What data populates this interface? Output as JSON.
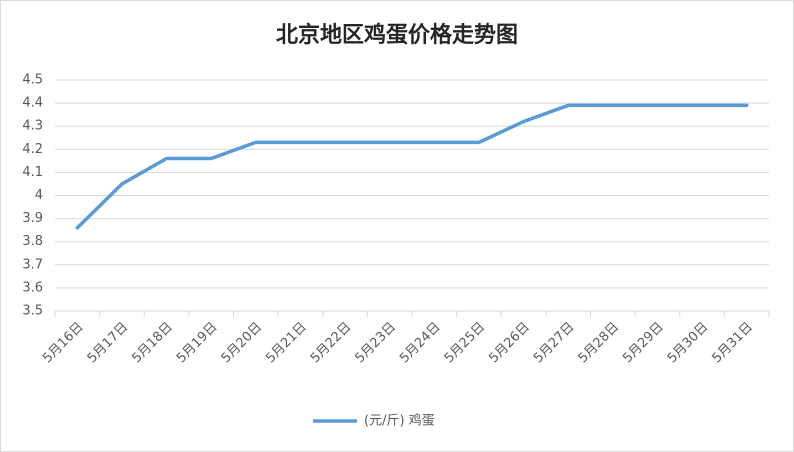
{
  "chart_data": {
    "type": "line",
    "title": "北京地区鸡蛋价格走势图",
    "categories": [
      "5月16日",
      "5月17日",
      "5月18日",
      "5月19日",
      "5月20日",
      "5月21日",
      "5月22日",
      "5月23日",
      "5月24日",
      "5月25日",
      "5月26日",
      "5月27日",
      "5月28日",
      "5月29日",
      "5月30日",
      "5月31日"
    ],
    "series": [
      {
        "name": "(元/斤) 鸡蛋",
        "color": "#5b9bd5",
        "values": [
          3.86,
          4.05,
          4.16,
          4.16,
          4.23,
          4.23,
          4.23,
          4.23,
          4.23,
          4.23,
          4.32,
          4.39,
          4.39,
          4.39,
          4.39,
          4.39
        ]
      }
    ],
    "ylim": [
      3.5,
      4.5
    ],
    "yticks": [
      3.5,
      3.6,
      3.7,
      3.8,
      3.9,
      4,
      4.1,
      4.2,
      4.3,
      4.4,
      4.5
    ],
    "grid": true,
    "legend": "bottom"
  }
}
